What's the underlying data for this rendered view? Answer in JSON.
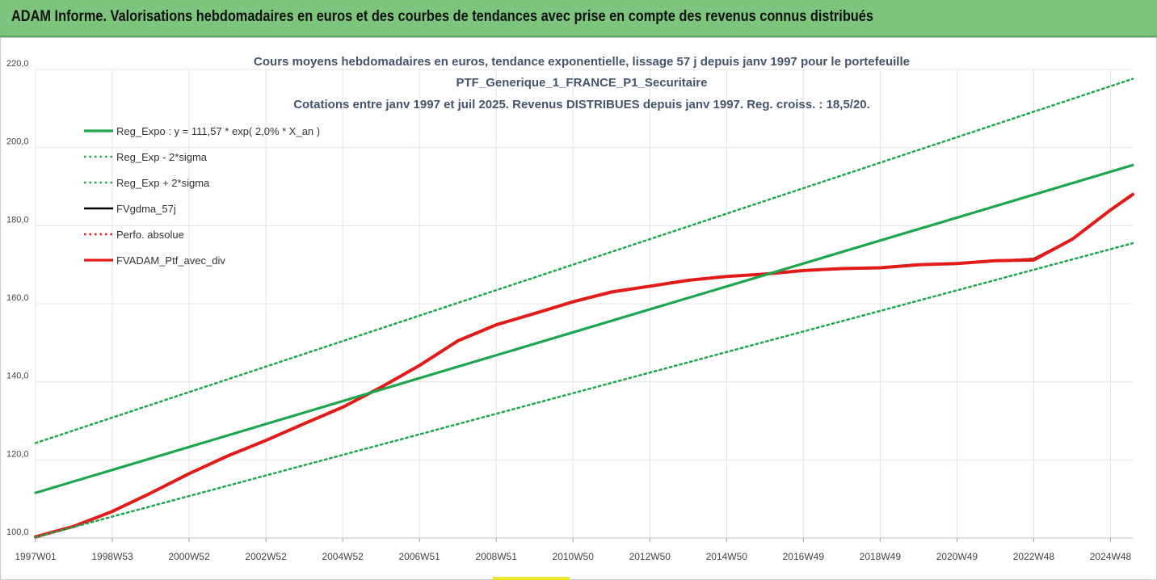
{
  "header": {
    "title": "ADAM Informe. Valorisations hebdomadaires en euros et des courbes de tendances avec prise en compte des revenus connus distribués"
  },
  "chart_data": {
    "type": "line",
    "title": [
      "Cours moyens hebdomadaires  en euros, tendance exponentielle, lissage 57 j depuis janv 1997 pour le portefeuille",
      "PTF_Generique_1_FRANCE_P1_Securitaire",
      "Cotations  entre janv 1997 et juil 2025. Revenus DISTRIBUES depuis janv 1997. Reg. croiss. : 18,5/20."
    ],
    "xlabel": "",
    "ylabel": "",
    "x_range": [
      1997.0,
      2025.58
    ],
    "ylim": [
      100,
      220
    ],
    "y_ticks": [
      "100,0",
      "120,0",
      "140,0",
      "160,0",
      "180,0",
      "200,0",
      "220,0"
    ],
    "x_ticks": [
      {
        "label": "1997W01",
        "x": 1997.0
      },
      {
        "label": "1998W53",
        "x": 1999.0
      },
      {
        "label": "2000W52",
        "x": 2001.0
      },
      {
        "label": "2002W52",
        "x": 2003.0
      },
      {
        "label": "2004W52",
        "x": 2005.0
      },
      {
        "label": "2006W51",
        "x": 2007.0
      },
      {
        "label": "2008W51",
        "x": 2009.0
      },
      {
        "label": "2010W50",
        "x": 2011.0
      },
      {
        "label": "2012W50",
        "x": 2013.0
      },
      {
        "label": "2014W50",
        "x": 2015.0
      },
      {
        "label": "2016W49",
        "x": 2017.0
      },
      {
        "label": "2018W49",
        "x": 2019.0
      },
      {
        "label": "2020W49",
        "x": 2021.0
      },
      {
        "label": "2022W48",
        "x": 2023.0
      },
      {
        "label": "2024W48",
        "x": 2025.0
      }
    ],
    "grid": true,
    "legend_position": "top-left",
    "series": [
      {
        "name": "Reg_Expo : y = 111,57 * exp( 2,0% *  X_an )",
        "color": "#1ea64c",
        "style": "solid",
        "x": [
          1997.0,
          2025.58
        ],
        "y": [
          111.57,
          195.5
        ]
      },
      {
        "name": "Reg_Exp - 2*sigma",
        "color": "#1ea64c",
        "style": "dotted",
        "x": [
          1997.0,
          2025.58
        ],
        "y": [
          100.2,
          175.5
        ]
      },
      {
        "name": "Reg_Exp + 2*sigma",
        "color": "#1ea64c",
        "style": "dotted",
        "x": [
          1997.0,
          2025.58
        ],
        "y": [
          124.3,
          217.6
        ]
      },
      {
        "name": "FVgdma_57j",
        "color": "#000000",
        "style": "solid",
        "x": [
          1997.0,
          1998.0,
          1999.0,
          2000.0,
          2001.0,
          2002.0,
          2003.0,
          2004.0,
          2005.0,
          2006.0,
          2007.0,
          2008.0,
          2009.0,
          2010.0,
          2011.0,
          2012.0,
          2013.0,
          2014.0,
          2015.0,
          2016.0,
          2017.0,
          2018.0,
          2019.0,
          2020.0,
          2021.0,
          2022.0,
          2023.0,
          2024.0,
          2025.0,
          2025.58
        ],
        "y": [
          100.3,
          103.0,
          106.8,
          111.5,
          116.5,
          121.0,
          125.0,
          129.3,
          133.5,
          138.6,
          144.2,
          150.5,
          154.6,
          157.5,
          160.5,
          163.0,
          164.5,
          166.0,
          167.0,
          167.6,
          168.5,
          169.0,
          169.2,
          170.0,
          170.3,
          171.0,
          171.5,
          176.5,
          184.0,
          188.0
        ]
      },
      {
        "name": "Perfo. absolue",
        "color": "#e31a1a",
        "style": "dotted",
        "x": [
          1997.0,
          1998.0,
          1999.0,
          2000.0,
          2001.0,
          2002.0,
          2003.0,
          2004.0,
          2005.0,
          2006.0,
          2007.0,
          2008.0,
          2009.0,
          2010.0,
          2011.0,
          2012.0,
          2013.0,
          2014.0,
          2015.0,
          2016.0,
          2017.0,
          2018.0,
          2019.0,
          2020.0,
          2021.0,
          2022.0,
          2023.0,
          2024.0,
          2025.0,
          2025.58
        ],
        "y": [
          100.3,
          103.0,
          106.8,
          111.5,
          116.5,
          121.0,
          125.0,
          129.3,
          133.5,
          138.6,
          144.2,
          150.5,
          154.6,
          157.5,
          160.5,
          163.0,
          164.5,
          166.0,
          167.0,
          167.6,
          168.5,
          169.0,
          169.2,
          170.0,
          170.3,
          171.0,
          171.5,
          176.5,
          184.0,
          188.0
        ]
      },
      {
        "name": "FVADAM_Ptf_avec_div",
        "color": "#e31a1a",
        "style": "solid",
        "x": [
          1997.0,
          1998.0,
          1999.0,
          2000.0,
          2001.0,
          2002.0,
          2003.0,
          2004.0,
          2005.0,
          2006.0,
          2007.0,
          2008.0,
          2009.0,
          2010.0,
          2011.0,
          2012.0,
          2013.0,
          2014.0,
          2015.0,
          2016.0,
          2017.0,
          2018.0,
          2019.0,
          2020.0,
          2021.0,
          2022.0,
          2023.0,
          2024.0,
          2025.0,
          2025.58
        ],
        "y": [
          100.3,
          103.0,
          106.8,
          111.5,
          116.5,
          121.0,
          125.0,
          129.3,
          133.5,
          138.6,
          144.2,
          150.5,
          154.6,
          157.5,
          160.5,
          163.0,
          164.5,
          166.0,
          167.0,
          167.6,
          168.5,
          169.0,
          169.2,
          170.0,
          170.3,
          171.0,
          171.2,
          176.5,
          184.0,
          188.0
        ]
      }
    ]
  }
}
